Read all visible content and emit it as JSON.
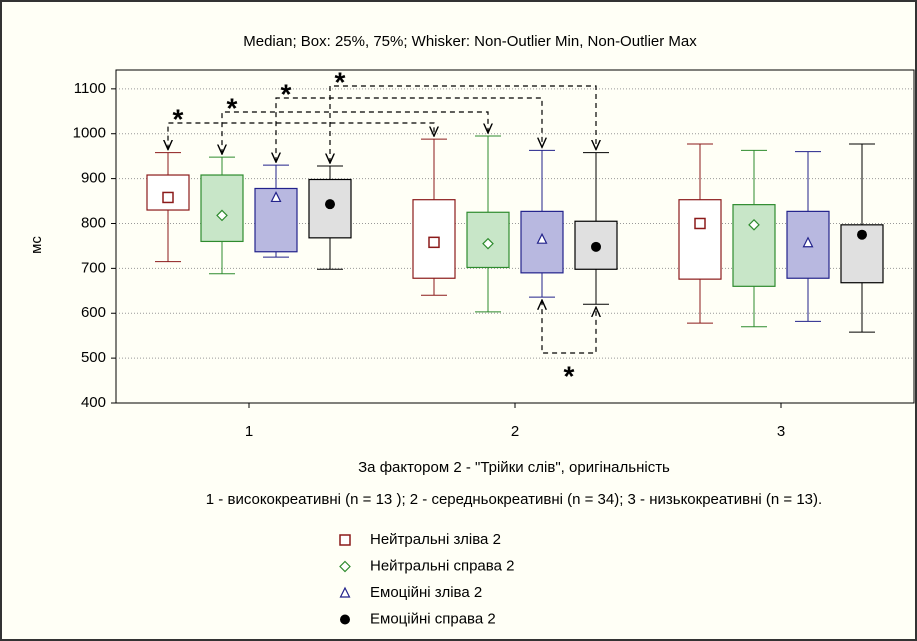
{
  "chart_data": {
    "type": "box",
    "title": "Median;  Box: 25%, 75%;  Whisker: Non-Outlier Min, Non-Outlier Max",
    "x_label": "За фактором 2 - \"Трійки слів\", оригінальність",
    "x_note": "1 - висококреативні  (n = 13 ); 2 - середньокреативні  (n = 34); 3 - низькокреативні  (n = 13).",
    "y_label": "мс",
    "categories": [
      "1",
      "2",
      "3"
    ],
    "ylim": [
      400,
      1142
    ],
    "yticks": [
      400,
      500,
      600,
      700,
      800,
      900,
      1000,
      1100
    ],
    "grid": true,
    "series": [
      {
        "name": "Нейтральні зліва 2",
        "color": "#8b1a1a",
        "fill": "#ffffff",
        "marker": "square",
        "min": [
          715,
          640,
          578
        ],
        "q1": [
          830,
          678,
          676
        ],
        "median": [
          858,
          758,
          800
        ],
        "q3": [
          908,
          853,
          853
        ],
        "max": [
          958,
          988,
          977
        ]
      },
      {
        "name": "Нейтральні справа 2",
        "color": "#2e8b2e",
        "fill": "#c8e6c8",
        "marker": "diamond",
        "min": [
          688,
          603,
          570
        ],
        "q1": [
          760,
          702,
          660
        ],
        "median": [
          818,
          755,
          797
        ],
        "q3": [
          908,
          825,
          842
        ],
        "max": [
          948,
          995,
          963
        ]
      },
      {
        "name": "Емоційні зліва 2",
        "color": "#22228b",
        "fill": "#b8b8e0",
        "marker": "triangle",
        "min": [
          725,
          636,
          582
        ],
        "q1": [
          737,
          690,
          678
        ],
        "median": [
          858,
          765,
          757
        ],
        "q3": [
          878,
          827,
          827
        ],
        "max": [
          930,
          963,
          960
        ]
      },
      {
        "name": "Емоційні справа 2",
        "color": "#000000",
        "fill": "#e0e0e0",
        "marker": "circle",
        "min": [
          698,
          620,
          558
        ],
        "q1": [
          768,
          698,
          668
        ],
        "median": [
          843,
          748,
          775
        ],
        "q3": [
          898,
          805,
          797
        ],
        "max": [
          928,
          958,
          977
        ]
      }
    ],
    "annotations": [
      "*",
      "*",
      "*",
      "*",
      "*"
    ]
  }
}
